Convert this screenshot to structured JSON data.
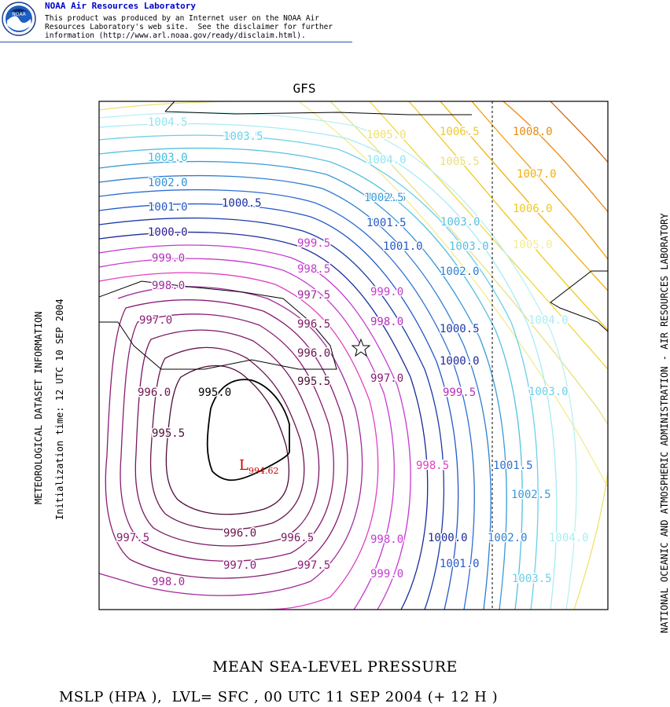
{
  "header": {
    "logo_text": "NOAA",
    "title": "NOAA Air Resources Laboratory",
    "disclaimer_lines": [
      "This product was produced by an Internet user on the NOAA Air",
      "Resources Laboratory's web site.  See the disclaimer for further",
      "information (http://www.arl.noaa.gov/ready/disclaim.html)."
    ]
  },
  "model_title": "GFS",
  "side_left_1": "METEOROLOGICAL DATASET INFORMATION",
  "side_left_2": "Initialization time: 12 UTC 10 SEP 2004",
  "side_right": "NATIONAL OCEANIC AND ATMOSPHERIC ADMINISTRATION - AIR RESOURCES LABORATORY",
  "product_title": "MEAN SEA-LEVEL PRESSURE",
  "product_subtitle": "MSLP (HPA ),  LVL= SFC , 00 UTC 11 SEP 2004 (+ 12 H )",
  "low_center": {
    "symbol": "L",
    "value": "994.62"
  },
  "contour_labels": [
    {
      "text": "1004.5",
      "color": "#8fe6f0"
    },
    {
      "text": "1003.5",
      "color": "#5fd3e8"
    },
    {
      "text": "1003.0",
      "color": "#40bce0"
    },
    {
      "text": "1002.0",
      "color": "#3190d8"
    },
    {
      "text": "1001.0",
      "color": "#2458c8"
    },
    {
      "text": "1000.5",
      "color": "#1a2ea0"
    },
    {
      "text": "1000.0",
      "color": "#2a1a90"
    },
    {
      "text": "999.0",
      "color": "#b52cbd"
    },
    {
      "text": "998.0",
      "color": "#a0289c"
    },
    {
      "text": "997.0",
      "color": "#8a1c74"
    },
    {
      "text": "996.0",
      "color": "#6a1450"
    },
    {
      "text": "995.5",
      "color": "#4e0c38"
    },
    {
      "text": "995.0",
      "color": "#000000"
    },
    {
      "text": "999.5",
      "color": "#c53ad0"
    },
    {
      "text": "998.5",
      "color": "#c53ad0"
    },
    {
      "text": "997.5",
      "color": "#a0289c"
    },
    {
      "text": "996.5",
      "color": "#7a1860"
    },
    {
      "text": "996.0",
      "color": "#6a1450"
    },
    {
      "text": "995.5",
      "color": "#4e0c38"
    },
    {
      "text": "999.0",
      "color": "#c53ad0"
    },
    {
      "text": "998.0",
      "color": "#b52cbd"
    },
    {
      "text": "997.0",
      "color": "#8a1c74"
    },
    {
      "text": "1001.0",
      "color": "#2458c8"
    },
    {
      "text": "1002.0",
      "color": "#2e7ed0"
    },
    {
      "text": "1000.5",
      "color": "#1a3aa8"
    },
    {
      "text": "1000.0",
      "color": "#1a2a98"
    },
    {
      "text": "999.5",
      "color": "#b52cbd"
    },
    {
      "text": "998.5",
      "color": "#e040c0"
    },
    {
      "text": "1001.5",
      "color": "#2458c8"
    },
    {
      "text": "1002.5",
      "color": "#3a9ad8"
    },
    {
      "text": "1003.0",
      "color": "#55c0e0"
    },
    {
      "text": "1004.0",
      "color": "#90e4f0"
    },
    {
      "text": "1003.5",
      "color": "#6ad0e8"
    },
    {
      "text": "1003.0",
      "color": "#55c0e0"
    },
    {
      "text": "1002.5",
      "color": "#3a9ad8"
    },
    {
      "text": "1001.5",
      "color": "#2458c8"
    },
    {
      "text": "1004.0",
      "color": "#a8ecf4"
    },
    {
      "text": "1003.5",
      "color": "#8ae0ee"
    },
    {
      "text": "1004.5",
      "color": "#b8f0f4"
    },
    {
      "text": "1005.5",
      "color": "#e8e080"
    },
    {
      "text": "1005.0",
      "color": "#f0e070"
    },
    {
      "text": "1006.5",
      "color": "#f0c830"
    },
    {
      "text": "1008.0",
      "color": "#e88a10"
    },
    {
      "text": "1007.0",
      "color": "#f0b010"
    },
    {
      "text": "1006.0",
      "color": "#f0c820"
    },
    {
      "text": "1005.0",
      "color": "#f4ec90"
    },
    {
      "text": "1004.0",
      "color": "#a8ecf4"
    },
    {
      "text": "1003.0",
      "color": "#6ad0e8"
    },
    {
      "text": "1001.5",
      "color": "#2e6ed0"
    },
    {
      "text": "1002.5",
      "color": "#3a9ad8"
    },
    {
      "text": "1004.0",
      "color": "#a8ecf4"
    },
    {
      "text": "1002.0",
      "color": "#2e7ed0"
    },
    {
      "text": "1000.0",
      "color": "#1a2a98"
    },
    {
      "text": "1001.0",
      "color": "#2458c8"
    },
    {
      "text": "1003.5",
      "color": "#6ad0e8"
    },
    {
      "text": "998.5",
      "color": "#e040c0"
    },
    {
      "text": "998.0",
      "color": "#c53ad0"
    },
    {
      "text": "999.0",
      "color": "#c53ad0"
    },
    {
      "text": "996.5",
      "color": "#7a1860"
    },
    {
      "text": "997.5",
      "color": "#8a1c74"
    },
    {
      "text": "996.0",
      "color": "#6a1450"
    },
    {
      "text": "997.0",
      "color": "#8a1c74"
    },
    {
      "text": "997.5",
      "color": "#8a1c74"
    },
    {
      "text": "998.0",
      "color": "#a0289c"
    },
    {
      "text": "997.5",
      "color": "#8a1c74"
    }
  ]
}
